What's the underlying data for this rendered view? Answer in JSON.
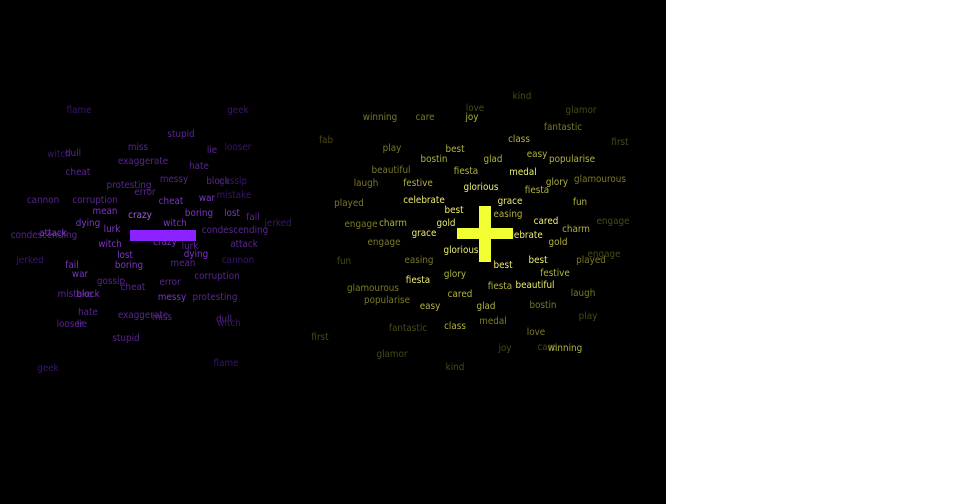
{
  "colors": {
    "background": "#000000",
    "negative_symbol": "#8b22ff",
    "positive_symbol": "#f2ff33",
    "neg": [
      "#3a1570",
      "#5a2590",
      "#7d35c4",
      "#a35ce6"
    ],
    "pos": [
      "#4b4a16",
      "#7c7a26",
      "#b2b33e",
      "#eeef6f"
    ]
  },
  "symbols": {
    "negative": "minus-symbol",
    "positive": "plus-symbol"
  },
  "negative_words": [
    {
      "text": "flame",
      "level": 0
    },
    {
      "text": "geek",
      "level": 0
    },
    {
      "text": "stupid",
      "level": 1
    },
    {
      "text": "miss",
      "level": 1
    },
    {
      "text": "lie",
      "level": 1
    },
    {
      "text": "looser",
      "level": 0
    },
    {
      "text": "witch",
      "level": 0
    },
    {
      "text": "dull",
      "level": 1
    },
    {
      "text": "exaggerate",
      "level": 1
    },
    {
      "text": "hate",
      "level": 1
    },
    {
      "text": "cheat",
      "level": 1
    },
    {
      "text": "messy",
      "level": 1
    },
    {
      "text": "block",
      "level": 1
    },
    {
      "text": "gossip",
      "level": 0
    },
    {
      "text": "protesting",
      "level": 1
    },
    {
      "text": "error",
      "level": 1
    },
    {
      "text": "mistake",
      "level": 0
    },
    {
      "text": "cannon",
      "level": 1
    },
    {
      "text": "corruption",
      "level": 1
    },
    {
      "text": "cheat",
      "level": 2
    },
    {
      "text": "war",
      "level": 2
    },
    {
      "text": "mean",
      "level": 2
    },
    {
      "text": "crazy",
      "level": 3
    },
    {
      "text": "boring",
      "level": 2
    },
    {
      "text": "lost",
      "level": 2
    },
    {
      "text": "fail",
      "level": 1
    },
    {
      "text": "jerked",
      "level": 0
    },
    {
      "text": "dying",
      "level": 2
    },
    {
      "text": "witch",
      "level": 2
    },
    {
      "text": "lurk",
      "level": 2
    },
    {
      "text": "condescending",
      "level": 1
    },
    {
      "text": "condescending",
      "level": 1
    },
    {
      "text": "attack",
      "level": 2
    },
    {
      "text": "attack",
      "level": 1
    },
    {
      "text": "witch",
      "level": 2
    },
    {
      "text": "crazy",
      "level": 2
    },
    {
      "text": "lurk",
      "level": 1
    },
    {
      "text": "lost",
      "level": 2
    },
    {
      "text": "dying",
      "level": 2
    },
    {
      "text": "jerked",
      "level": 0
    },
    {
      "text": "fail",
      "level": 2
    },
    {
      "text": "boring",
      "level": 2
    },
    {
      "text": "mean",
      "level": 1
    },
    {
      "text": "cannon",
      "level": 0
    },
    {
      "text": "war",
      "level": 2
    },
    {
      "text": "corruption",
      "level": 1
    },
    {
      "text": "gossip",
      "level": 1
    },
    {
      "text": "error",
      "level": 1
    },
    {
      "text": "cheat",
      "level": 1
    },
    {
      "text": "mistake",
      "level": 1
    },
    {
      "text": "block",
      "level": 2
    },
    {
      "text": "messy",
      "level": 2
    },
    {
      "text": "protesting",
      "level": 1
    },
    {
      "text": "hate",
      "level": 1
    },
    {
      "text": "exaggerate",
      "level": 1
    },
    {
      "text": "miss",
      "level": 1
    },
    {
      "text": "dull",
      "level": 1
    },
    {
      "text": "witch",
      "level": 0
    },
    {
      "text": "looser",
      "level": 1
    },
    {
      "text": "lie",
      "level": 1
    },
    {
      "text": "stupid",
      "level": 1
    },
    {
      "text": "flame",
      "level": 0
    },
    {
      "text": "geek",
      "level": 0
    }
  ],
  "positive_words": [
    {
      "text": "kind",
      "level": 0
    },
    {
      "text": "love",
      "level": 0
    },
    {
      "text": "glamor",
      "level": 0
    },
    {
      "text": "winning",
      "level": 1
    },
    {
      "text": "care",
      "level": 1
    },
    {
      "text": "joy",
      "level": 2
    },
    {
      "text": "fantastic",
      "level": 1
    },
    {
      "text": "class",
      "level": 2
    },
    {
      "text": "first",
      "level": 0
    },
    {
      "text": "fab",
      "level": 0
    },
    {
      "text": "play",
      "level": 1
    },
    {
      "text": "best",
      "level": 2
    },
    {
      "text": "easy",
      "level": 2
    },
    {
      "text": "bostin",
      "level": 2
    },
    {
      "text": "glad",
      "level": 2
    },
    {
      "text": "popularise",
      "level": 2
    },
    {
      "text": "beautiful",
      "level": 1
    },
    {
      "text": "fiesta",
      "level": 2
    },
    {
      "text": "medal",
      "level": 3
    },
    {
      "text": "laugh",
      "level": 1
    },
    {
      "text": "festive",
      "level": 2
    },
    {
      "text": "glorious",
      "level": 3
    },
    {
      "text": "glory",
      "level": 2
    },
    {
      "text": "fiesta",
      "level": 2
    },
    {
      "text": "glamourous",
      "level": 1
    },
    {
      "text": "played",
      "level": 1
    },
    {
      "text": "celebrate",
      "level": 3
    },
    {
      "text": "grace",
      "level": 3
    },
    {
      "text": "fun",
      "level": 2
    },
    {
      "text": "best",
      "level": 3
    },
    {
      "text": "easing",
      "level": 2
    },
    {
      "text": "engage",
      "level": 1
    },
    {
      "text": "charm",
      "level": 2
    },
    {
      "text": "gold",
      "level": 3
    },
    {
      "text": "cared",
      "level": 3
    },
    {
      "text": "charm",
      "level": 2
    },
    {
      "text": "engage",
      "level": 0
    },
    {
      "text": "grace",
      "level": 3
    },
    {
      "text": "engage",
      "level": 1
    },
    {
      "text": "celebrate",
      "level": 3
    },
    {
      "text": "gold",
      "level": 2
    },
    {
      "text": "glorious",
      "level": 3
    },
    {
      "text": "fun",
      "level": 0
    },
    {
      "text": "easing",
      "level": 1
    },
    {
      "text": "best",
      "level": 3
    },
    {
      "text": "best",
      "level": 3
    },
    {
      "text": "played",
      "level": 1
    },
    {
      "text": "engage",
      "level": 0
    },
    {
      "text": "festive",
      "level": 2
    },
    {
      "text": "fiesta",
      "level": 3
    },
    {
      "text": "glory",
      "level": 2
    },
    {
      "text": "fiesta",
      "level": 2
    },
    {
      "text": "beautiful",
      "level": 3
    },
    {
      "text": "glamourous",
      "level": 1
    },
    {
      "text": "laugh",
      "level": 1
    },
    {
      "text": "popularise",
      "level": 1
    },
    {
      "text": "cared",
      "level": 2
    },
    {
      "text": "easy",
      "level": 2
    },
    {
      "text": "glad",
      "level": 2
    },
    {
      "text": "bostin",
      "level": 1
    },
    {
      "text": "play",
      "level": 0
    },
    {
      "text": "medal",
      "level": 1
    },
    {
      "text": "fantastic",
      "level": 0
    },
    {
      "text": "class",
      "level": 2
    },
    {
      "text": "first",
      "level": 0
    },
    {
      "text": "love",
      "level": 1
    },
    {
      "text": "joy",
      "level": 0
    },
    {
      "text": "care",
      "level": 0
    },
    {
      "text": "winning",
      "level": 2
    },
    {
      "text": "glamor",
      "level": 0
    },
    {
      "text": "kind",
      "level": 0
    }
  ]
}
